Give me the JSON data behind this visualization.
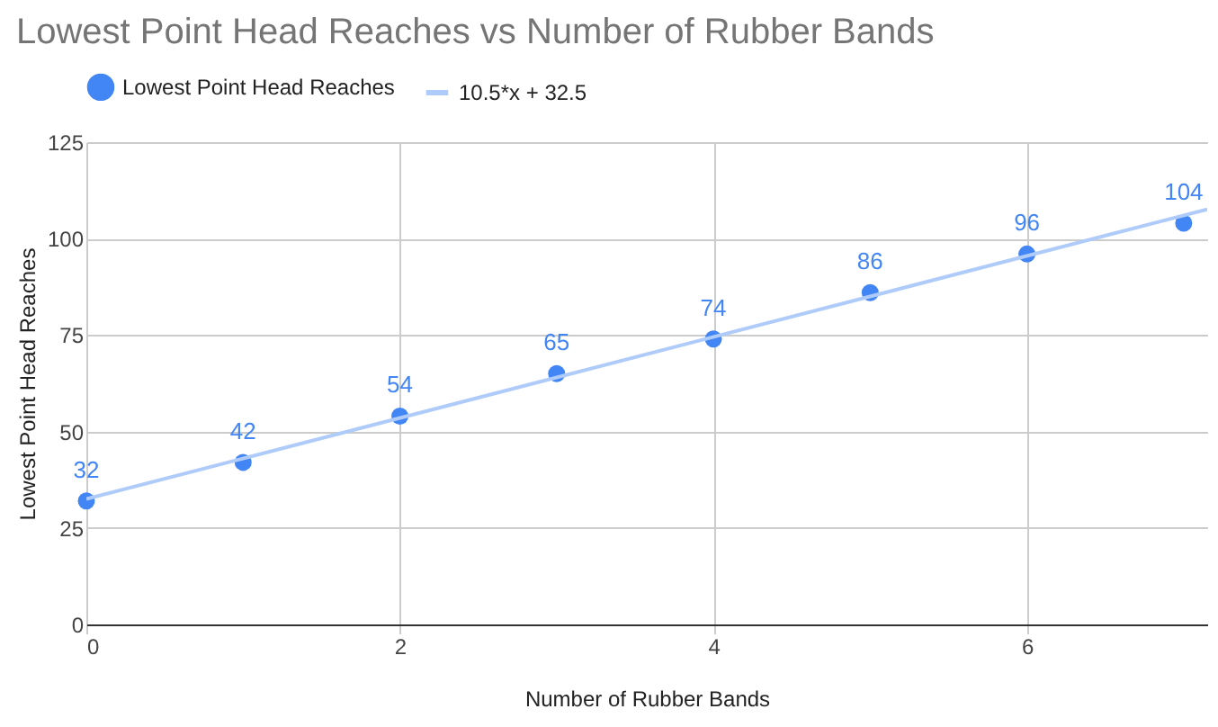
{
  "chart_data": {
    "type": "scatter",
    "title": "Lowest Point Head Reaches  vs Number of Rubber Bands",
    "xlabel": "Number of Rubber Bands",
    "ylabel": "Lowest Point Head Reaches",
    "x": [
      0,
      1,
      2,
      3,
      4,
      5,
      6,
      7
    ],
    "series": [
      {
        "name": "Lowest Point Head Reaches",
        "color": "#4285f4",
        "values": [
          32,
          42,
          54,
          65,
          74,
          86,
          96,
          104
        ],
        "value_labels": [
          "32",
          "42",
          "54",
          "65",
          "74",
          "86",
          "96",
          "104"
        ]
      },
      {
        "name": "10.5*x + 32.5",
        "type": "line",
        "marker": "none",
        "color": "#aecbfa",
        "x": [
          0,
          7.15
        ],
        "values": [
          32.5,
          107.6
        ]
      }
    ],
    "xlim": [
      0,
      7.15
    ],
    "xticks": [
      0,
      2,
      4,
      6
    ],
    "ylim": [
      0,
      125
    ],
    "yticks": [
      0,
      25,
      50,
      75,
      100,
      125
    ],
    "grid": true,
    "legend": "top",
    "marker": "circle"
  }
}
